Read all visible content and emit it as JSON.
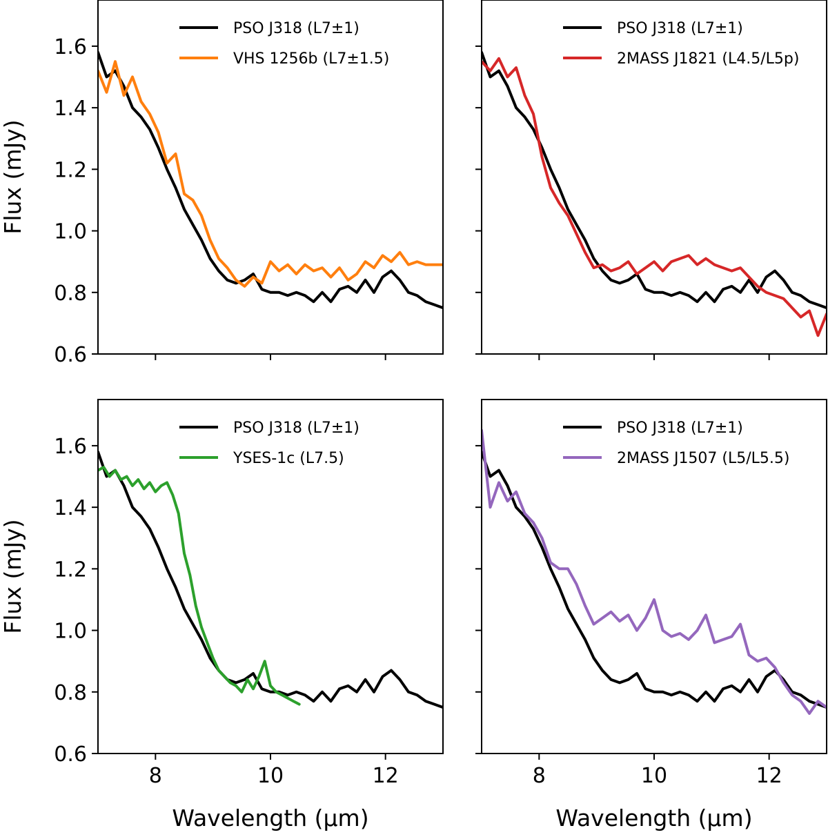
{
  "chart_data": [
    {
      "type": "line",
      "panel": "top-left",
      "xlabel": "",
      "ylabel": "Flux (mJy)",
      "xlim": [
        7.0,
        13.0
      ],
      "ylim": [
        0.6,
        1.75
      ],
      "xticks": [
        8,
        10,
        12
      ],
      "yticks": [
        0.6,
        0.8,
        1.0,
        1.2,
        1.4,
        1.6
      ],
      "show_xtick_labels": false,
      "show_ytick_labels": true,
      "legend_position": "top-right",
      "series": [
        {
          "name": "PSO J318 (L7±1)",
          "color": "#000000",
          "x": [
            7.0,
            7.15,
            7.3,
            7.45,
            7.6,
            7.75,
            7.9,
            8.05,
            8.2,
            8.35,
            8.5,
            8.65,
            8.8,
            8.95,
            9.1,
            9.25,
            9.4,
            9.55,
            9.7,
            9.85,
            10.0,
            10.15,
            10.3,
            10.45,
            10.6,
            10.75,
            10.9,
            11.05,
            11.2,
            11.35,
            11.5,
            11.65,
            11.8,
            11.95,
            12.1,
            12.25,
            12.4,
            12.55,
            12.7,
            12.85,
            13.0
          ],
          "y": [
            1.58,
            1.5,
            1.52,
            1.47,
            1.4,
            1.37,
            1.33,
            1.27,
            1.2,
            1.14,
            1.07,
            1.02,
            0.97,
            0.91,
            0.87,
            0.84,
            0.83,
            0.84,
            0.86,
            0.81,
            0.8,
            0.8,
            0.79,
            0.8,
            0.79,
            0.77,
            0.8,
            0.77,
            0.81,
            0.82,
            0.8,
            0.84,
            0.8,
            0.85,
            0.87,
            0.84,
            0.8,
            0.79,
            0.77,
            0.76,
            0.75
          ]
        },
        {
          "name": "VHS 1256b (L7±1.5)",
          "color": "#ff7f0e",
          "x": [
            7.0,
            7.15,
            7.3,
            7.45,
            7.6,
            7.75,
            7.9,
            8.05,
            8.2,
            8.35,
            8.5,
            8.65,
            8.8,
            8.95,
            9.1,
            9.25,
            9.4,
            9.55,
            9.7,
            9.85,
            10.0,
            10.15,
            10.3,
            10.45,
            10.6,
            10.75,
            10.9,
            11.05,
            11.2,
            11.35,
            11.5,
            11.65,
            11.8,
            11.95,
            12.1,
            12.25,
            12.4,
            12.55,
            12.7,
            12.85,
            13.0
          ],
          "y": [
            1.52,
            1.45,
            1.55,
            1.44,
            1.5,
            1.42,
            1.38,
            1.32,
            1.22,
            1.25,
            1.12,
            1.1,
            1.05,
            0.97,
            0.91,
            0.88,
            0.84,
            0.82,
            0.85,
            0.83,
            0.9,
            0.87,
            0.89,
            0.86,
            0.89,
            0.87,
            0.88,
            0.85,
            0.88,
            0.84,
            0.86,
            0.9,
            0.88,
            0.92,
            0.9,
            0.93,
            0.89,
            0.9,
            0.89,
            0.89,
            0.89
          ]
        }
      ]
    },
    {
      "type": "line",
      "panel": "top-right",
      "xlabel": "",
      "ylabel": "",
      "xlim": [
        7.0,
        13.0
      ],
      "ylim": [
        0.6,
        1.75
      ],
      "xticks": [
        8,
        10,
        12
      ],
      "yticks": [
        0.6,
        0.8,
        1.0,
        1.2,
        1.4,
        1.6
      ],
      "show_xtick_labels": false,
      "show_ytick_labels": false,
      "legend_position": "top-right",
      "series": [
        {
          "name": "PSO J318 (L7±1)",
          "color": "#000000",
          "x": [
            7.0,
            7.15,
            7.3,
            7.45,
            7.6,
            7.75,
            7.9,
            8.05,
            8.2,
            8.35,
            8.5,
            8.65,
            8.8,
            8.95,
            9.1,
            9.25,
            9.4,
            9.55,
            9.7,
            9.85,
            10.0,
            10.15,
            10.3,
            10.45,
            10.6,
            10.75,
            10.9,
            11.05,
            11.2,
            11.35,
            11.5,
            11.65,
            11.8,
            11.95,
            12.1,
            12.25,
            12.4,
            12.55,
            12.7,
            12.85,
            13.0
          ],
          "y": [
            1.58,
            1.5,
            1.52,
            1.47,
            1.4,
            1.37,
            1.33,
            1.27,
            1.2,
            1.14,
            1.07,
            1.02,
            0.97,
            0.91,
            0.87,
            0.84,
            0.83,
            0.84,
            0.86,
            0.81,
            0.8,
            0.8,
            0.79,
            0.8,
            0.79,
            0.77,
            0.8,
            0.77,
            0.81,
            0.82,
            0.8,
            0.84,
            0.8,
            0.85,
            0.87,
            0.84,
            0.8,
            0.79,
            0.77,
            0.76,
            0.75
          ]
        },
        {
          "name": "2MASS J1821 (L4.5/L5p)",
          "color": "#d62728",
          "x": [
            7.0,
            7.15,
            7.3,
            7.45,
            7.6,
            7.75,
            7.9,
            8.05,
            8.2,
            8.35,
            8.5,
            8.65,
            8.8,
            8.95,
            9.1,
            9.25,
            9.4,
            9.55,
            9.7,
            9.85,
            10.0,
            10.15,
            10.3,
            10.45,
            10.6,
            10.75,
            10.9,
            11.05,
            11.2,
            11.35,
            11.5,
            11.65,
            11.8,
            11.95,
            12.1,
            12.25,
            12.4,
            12.55,
            12.7,
            12.85,
            13.0
          ],
          "y": [
            1.55,
            1.52,
            1.56,
            1.5,
            1.53,
            1.44,
            1.38,
            1.24,
            1.14,
            1.09,
            1.05,
            0.99,
            0.93,
            0.88,
            0.89,
            0.87,
            0.88,
            0.9,
            0.86,
            0.88,
            0.9,
            0.87,
            0.9,
            0.91,
            0.92,
            0.89,
            0.91,
            0.89,
            0.88,
            0.87,
            0.88,
            0.85,
            0.82,
            0.8,
            0.79,
            0.78,
            0.75,
            0.72,
            0.74,
            0.66,
            0.73
          ]
        }
      ]
    },
    {
      "type": "line",
      "panel": "bottom-left",
      "xlabel": "Wavelength (µm)",
      "ylabel": "Flux (mJy)",
      "xlim": [
        7.0,
        13.0
      ],
      "ylim": [
        0.6,
        1.75
      ],
      "xticks": [
        8,
        10,
        12
      ],
      "yticks": [
        0.6,
        0.8,
        1.0,
        1.2,
        1.4,
        1.6
      ],
      "show_xtick_labels": true,
      "show_ytick_labels": true,
      "legend_position": "top-right",
      "series": [
        {
          "name": "PSO J318 (L7±1)",
          "color": "#000000",
          "x": [
            7.0,
            7.15,
            7.3,
            7.45,
            7.6,
            7.75,
            7.9,
            8.05,
            8.2,
            8.35,
            8.5,
            8.65,
            8.8,
            8.95,
            9.1,
            9.25,
            9.4,
            9.55,
            9.7,
            9.85,
            10.0,
            10.15,
            10.3,
            10.45,
            10.6,
            10.75,
            10.9,
            11.05,
            11.2,
            11.35,
            11.5,
            11.65,
            11.8,
            11.95,
            12.1,
            12.25,
            12.4,
            12.55,
            12.7,
            12.85,
            13.0
          ],
          "y": [
            1.58,
            1.5,
            1.52,
            1.47,
            1.4,
            1.37,
            1.33,
            1.27,
            1.2,
            1.14,
            1.07,
            1.02,
            0.97,
            0.91,
            0.87,
            0.84,
            0.83,
            0.84,
            0.86,
            0.81,
            0.8,
            0.8,
            0.79,
            0.8,
            0.79,
            0.77,
            0.8,
            0.77,
            0.81,
            0.82,
            0.8,
            0.84,
            0.8,
            0.85,
            0.87,
            0.84,
            0.8,
            0.79,
            0.77,
            0.76,
            0.75
          ]
        },
        {
          "name": "YSES-1c (L7.5)",
          "color": "#2ca02c",
          "x": [
            7.0,
            7.1,
            7.2,
            7.3,
            7.4,
            7.5,
            7.6,
            7.7,
            7.8,
            7.9,
            8.0,
            8.1,
            8.2,
            8.3,
            8.4,
            8.5,
            8.6,
            8.7,
            8.8,
            8.9,
            9.0,
            9.1,
            9.2,
            9.3,
            9.4,
            9.5,
            9.6,
            9.7,
            9.8,
            9.9,
            10.0,
            10.1,
            10.2,
            10.3,
            10.4,
            10.5
          ],
          "y": [
            1.52,
            1.53,
            1.5,
            1.52,
            1.49,
            1.5,
            1.47,
            1.49,
            1.46,
            1.48,
            1.45,
            1.47,
            1.48,
            1.44,
            1.38,
            1.25,
            1.18,
            1.08,
            1.01,
            0.96,
            0.91,
            0.87,
            0.85,
            0.83,
            0.82,
            0.8,
            0.84,
            0.81,
            0.85,
            0.9,
            0.82,
            0.8,
            0.79,
            0.78,
            0.77,
            0.76
          ]
        }
      ]
    },
    {
      "type": "line",
      "panel": "bottom-right",
      "xlabel": "Wavelength (µm)",
      "ylabel": "",
      "xlim": [
        7.0,
        13.0
      ],
      "ylim": [
        0.6,
        1.75
      ],
      "xticks": [
        8,
        10,
        12
      ],
      "yticks": [
        0.6,
        0.8,
        1.0,
        1.2,
        1.4,
        1.6
      ],
      "show_xtick_labels": true,
      "show_ytick_labels": false,
      "legend_position": "top-right",
      "series": [
        {
          "name": "PSO J318 (L7±1)",
          "color": "#000000",
          "x": [
            7.0,
            7.15,
            7.3,
            7.45,
            7.6,
            7.75,
            7.9,
            8.05,
            8.2,
            8.35,
            8.5,
            8.65,
            8.8,
            8.95,
            9.1,
            9.25,
            9.4,
            9.55,
            9.7,
            9.85,
            10.0,
            10.15,
            10.3,
            10.45,
            10.6,
            10.75,
            10.9,
            11.05,
            11.2,
            11.35,
            11.5,
            11.65,
            11.8,
            11.95,
            12.1,
            12.25,
            12.4,
            12.55,
            12.7,
            12.85,
            13.0
          ],
          "y": [
            1.58,
            1.5,
            1.52,
            1.47,
            1.4,
            1.37,
            1.33,
            1.27,
            1.2,
            1.14,
            1.07,
            1.02,
            0.97,
            0.91,
            0.87,
            0.84,
            0.83,
            0.84,
            0.86,
            0.81,
            0.8,
            0.8,
            0.79,
            0.8,
            0.79,
            0.77,
            0.8,
            0.77,
            0.81,
            0.82,
            0.8,
            0.84,
            0.8,
            0.85,
            0.87,
            0.84,
            0.8,
            0.79,
            0.77,
            0.76,
            0.75
          ]
        },
        {
          "name": "2MASS J1507 (L5/L5.5)",
          "color": "#9467bd",
          "x": [
            7.0,
            7.15,
            7.3,
            7.45,
            7.6,
            7.75,
            7.9,
            8.05,
            8.2,
            8.35,
            8.5,
            8.65,
            8.8,
            8.95,
            9.1,
            9.25,
            9.4,
            9.55,
            9.7,
            9.85,
            10.0,
            10.15,
            10.3,
            10.45,
            10.6,
            10.75,
            10.9,
            11.05,
            11.2,
            11.35,
            11.5,
            11.65,
            11.8,
            11.95,
            12.1,
            12.25,
            12.4,
            12.55,
            12.7,
            12.85,
            13.0
          ],
          "y": [
            1.65,
            1.4,
            1.48,
            1.42,
            1.45,
            1.38,
            1.35,
            1.3,
            1.22,
            1.2,
            1.2,
            1.15,
            1.08,
            1.02,
            1.04,
            1.06,
            1.03,
            1.05,
            1.0,
            1.04,
            1.1,
            1.0,
            0.98,
            0.99,
            0.97,
            1.0,
            1.05,
            0.96,
            0.97,
            0.98,
            1.02,
            0.92,
            0.9,
            0.91,
            0.88,
            0.83,
            0.79,
            0.77,
            0.73,
            0.77,
            0.75
          ]
        }
      ]
    }
  ]
}
